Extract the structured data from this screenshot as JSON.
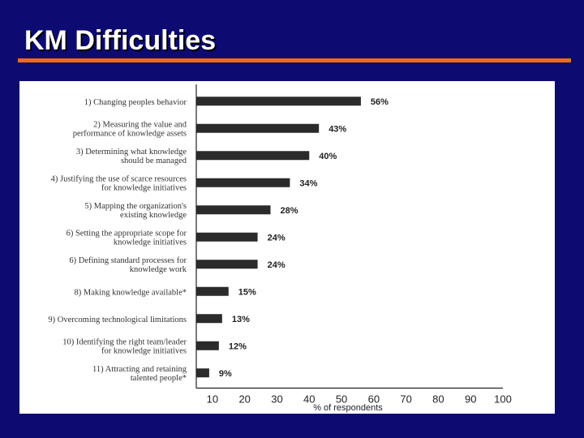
{
  "slide": {
    "title": "KM Difficulties",
    "background_color": "#0d0b72",
    "accent_color": "#f26a1b"
  },
  "chart_data": {
    "type": "bar",
    "orientation": "horizontal",
    "categories": [
      [
        "1) Changing peoples behavior"
      ],
      [
        "2) Measuring the value and",
        "performance of knowledge assets"
      ],
      [
        "3) Determining what knowledge",
        "should be managed"
      ],
      [
        "4) Justifying the use of scarce resources",
        "for knowledge initiatives"
      ],
      [
        "5) Mapping the organization's",
        "existing knowledge"
      ],
      [
        "6) Setting the appropriate scope for",
        "knowledge initiatives"
      ],
      [
        "6) Defining standard processes for",
        "knowledge work"
      ],
      [
        "8) Making knowledge available*"
      ],
      [
        "9) Overcoming technological limitations"
      ],
      [
        "10) Identifying the right team/leader",
        "for knowledge initiatives"
      ],
      [
        "11) Attracting and retaining",
        "talented people*"
      ]
    ],
    "values": [
      56,
      43,
      40,
      34,
      28,
      24,
      24,
      15,
      13,
      12,
      9
    ],
    "value_labels": [
      "56%",
      "43%",
      "40%",
      "34%",
      "28%",
      "24%",
      "24%",
      "15%",
      "13%",
      "12%",
      "9%"
    ],
    "xticks": [
      "10",
      "20",
      "30",
      "40",
      "50",
      "60",
      "70",
      "80",
      "90",
      "100"
    ],
    "xlim": [
      5,
      100
    ],
    "xlabel": "% of respondents",
    "bar_color": "#2b2b2b"
  }
}
